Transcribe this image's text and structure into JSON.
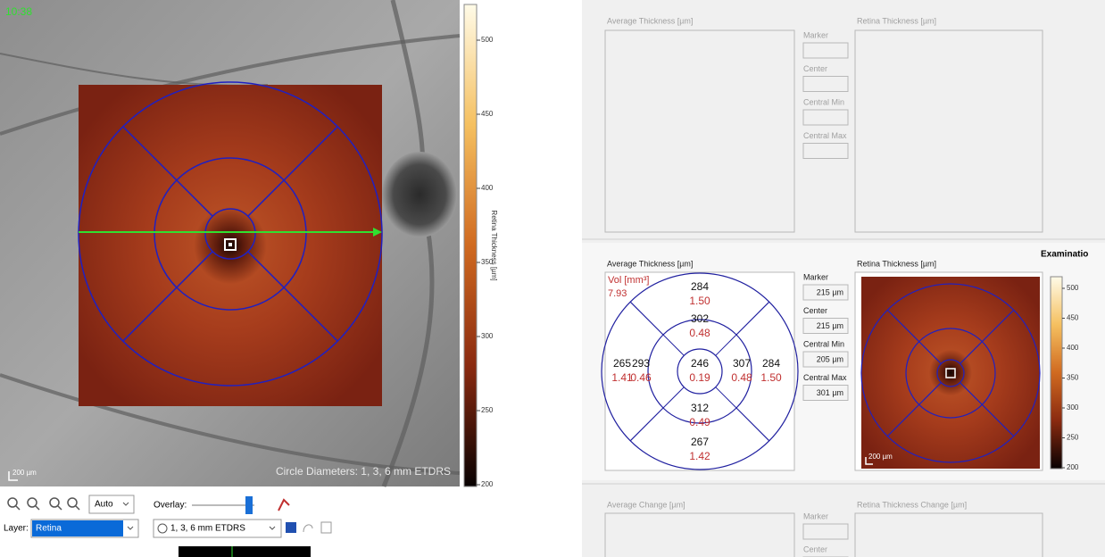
{
  "fundus_view": {
    "timestamp": "10:38",
    "scale_bar": "200 µm",
    "caption": "Circle Diameters: 1, 3, 6 mm ETDRS",
    "colorbar": {
      "label": "Retina Thickness [µm]",
      "ticks": [
        "500",
        "450",
        "400",
        "350",
        "300",
        "250",
        "200"
      ]
    }
  },
  "toolbar": {
    "zoom_mode": "Auto",
    "overlay_label": "Overlay:",
    "layer_label": "Layer:",
    "layer": "Retina",
    "grid": "1, 3, 6 mm ETDRS"
  },
  "baseline_panel": {
    "average_title": "Average Thickness [µm]",
    "retina_title": "Retina Thickness [µm]",
    "fields": [
      "Marker",
      "Center",
      "Central Min",
      "Central Max"
    ]
  },
  "current_panel": {
    "header": "Examinatio",
    "average_title": "Average Thickness [µm]",
    "volume_label": "Vol [mm³]",
    "total_volume": "7.93",
    "sectors": [
      {
        "thickness": "246",
        "volume": "0.19"
      },
      {
        "thickness": "302",
        "volume": "0.48"
      },
      {
        "thickness": "307",
        "volume": "0.48"
      },
      {
        "thickness": "312",
        "volume": "0.49"
      },
      {
        "thickness": "293",
        "volume": "0.46"
      },
      {
        "thickness": "284",
        "volume": "1.50"
      },
      {
        "thickness": "284",
        "volume": "1.50"
      },
      {
        "thickness": "267",
        "volume": "1.42"
      },
      {
        "thickness": "265",
        "volume": "1.41"
      }
    ],
    "fields": [
      {
        "label": "Marker",
        "value": "215 µm"
      },
      {
        "label": "Center",
        "value": "215 µm"
      },
      {
        "label": "Central Min",
        "value": "205 µm"
      },
      {
        "label": "Central Max",
        "value": "301 µm"
      }
    ],
    "retina_title": "Retina Thickness [µm]",
    "scale_bar": "200 µm",
    "colorbar_ticks": [
      "500",
      "450",
      "400",
      "350",
      "300",
      "250",
      "200"
    ]
  },
  "change_panel": {
    "average_title": "Average Change [µm]",
    "retina_title": "Retina Thickness Change [µm]",
    "fields": [
      "Marker",
      "Center"
    ]
  }
}
